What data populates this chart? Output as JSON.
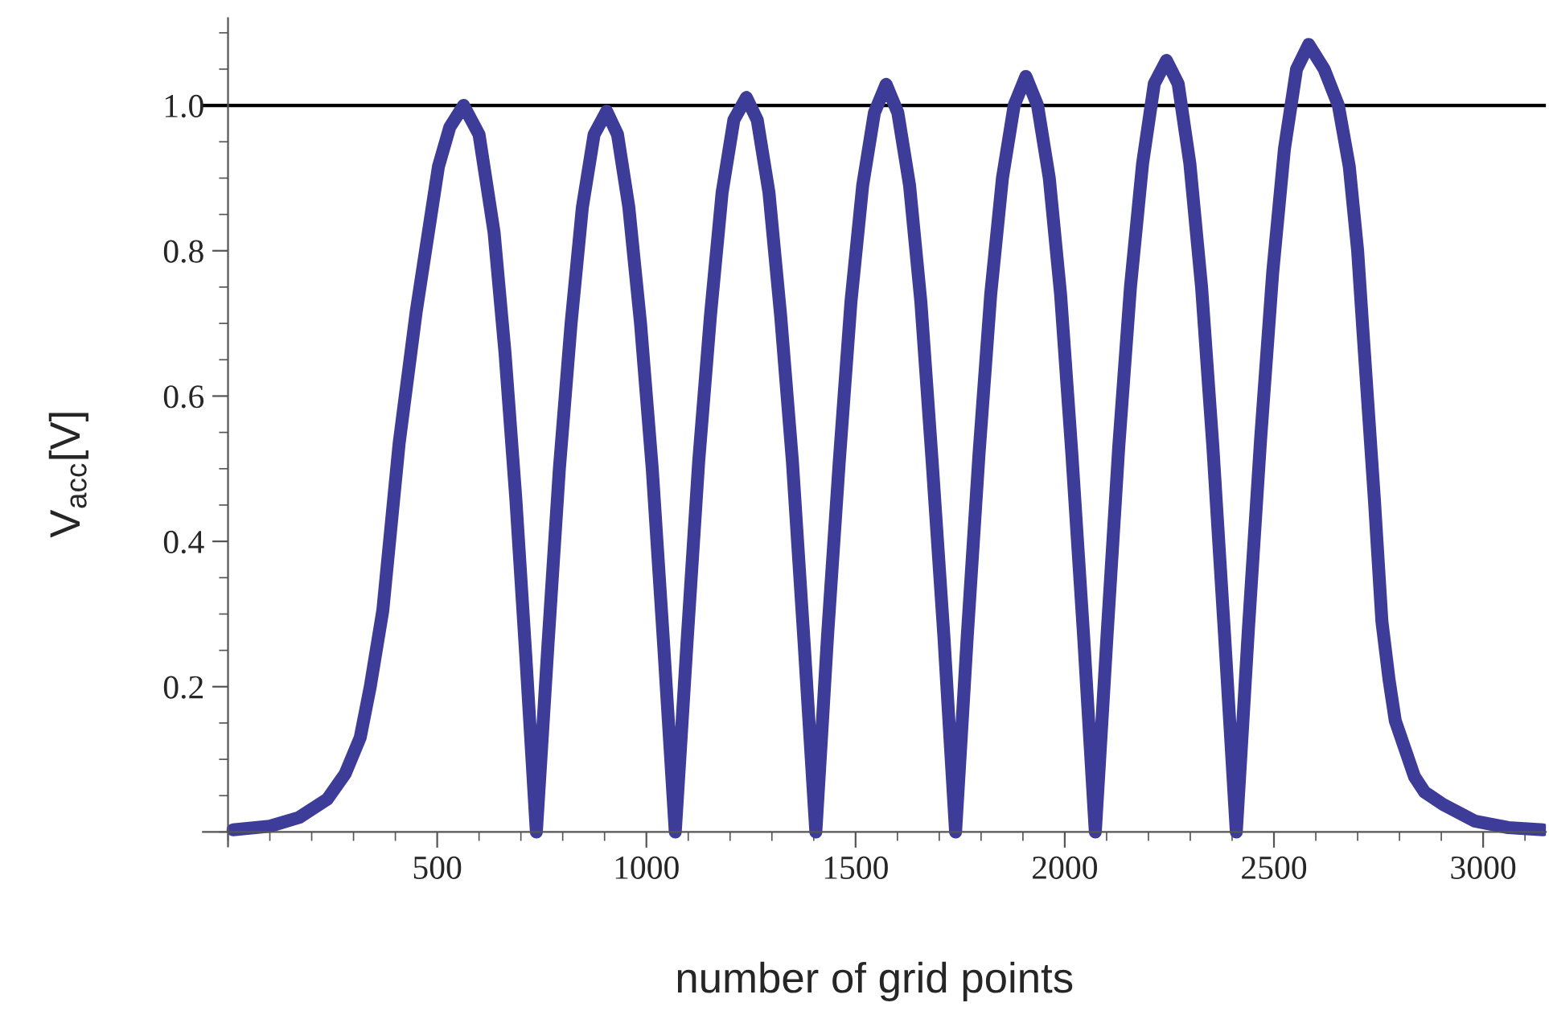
{
  "chart_data": {
    "type": "line",
    "xlabel": "number of grid points",
    "ylabel": "V$_{acc}$[V]",
    "series": [
      {
        "color": "#3d3d99",
        "x": [
          12,
          100,
          170,
          237,
          280,
          316,
          340,
          370,
          409,
          450,
          503,
          530,
          563,
          600,
          636,
          662,
          688,
          712,
          737,
          765,
          792,
          820,
          847,
          875,
          905,
          931,
          958,
          986,
          1014,
          1041,
          1069,
          1097,
          1125,
          1153,
          1181,
          1209,
          1239,
          1265,
          1293,
          1321,
          1349,
          1377,
          1405,
          1433,
          1461,
          1489,
          1517,
          1545,
          1573,
          1601,
          1629,
          1656,
          1683,
          1711,
          1739,
          1767,
          1795,
          1823,
          1851,
          1879,
          1907,
          1935,
          1963,
          1990,
          2017,
          2045,
          2073,
          2101,
          2129,
          2157,
          2186,
          2214,
          2243,
          2271,
          2299,
          2327,
          2354,
          2382,
          2410,
          2439,
          2468,
          2497,
          2525,
          2554,
          2583,
          2620,
          2654,
          2680,
          2700,
          2713,
          2740,
          2758,
          2775,
          2790,
          2836,
          2860,
          2904,
          2980,
          3060,
          3143
        ],
        "values": [
          0.003,
          0.008,
          0.02,
          0.045,
          0.08,
          0.13,
          0.2,
          0.305,
          0.535,
          0.717,
          0.916,
          0.97,
          1.0,
          0.96,
          0.825,
          0.66,
          0.458,
          0.24,
          0,
          0.26,
          0.5,
          0.7,
          0.86,
          0.96,
          0.992,
          0.96,
          0.86,
          0.7,
          0.5,
          0.26,
          0,
          0.26,
          0.51,
          0.71,
          0.88,
          0.98,
          1.011,
          0.98,
          0.88,
          0.71,
          0.51,
          0.26,
          0,
          0.27,
          0.51,
          0.73,
          0.89,
          0.99,
          1.029,
          0.99,
          0.89,
          0.73,
          0.51,
          0.27,
          0,
          0.27,
          0.52,
          0.74,
          0.9,
          1.0,
          1.04,
          1.0,
          0.9,
          0.74,
          0.52,
          0.27,
          0,
          0.27,
          0.53,
          0.75,
          0.92,
          1.03,
          1.062,
          1.03,
          0.92,
          0.75,
          0.53,
          0.27,
          0,
          0.28,
          0.54,
          0.77,
          0.94,
          1.05,
          1.084,
          1.05,
          1.0,
          0.916,
          0.8,
          0.687,
          0.458,
          0.29,
          0.21,
          0.153,
          0.076,
          0.055,
          0.038,
          0.015,
          0.006,
          0.003
        ]
      }
    ],
    "xlim": [
      -60,
      3150
    ],
    "ylim": [
      -0.02,
      1.12
    ],
    "xticks": [
      500,
      1000,
      1500,
      2000,
      2500,
      3000
    ],
    "yticks": [
      0.2,
      0.4,
      0.6,
      0.8,
      {
        "value": 1,
        "label": "1.0"
      }
    ],
    "ref_lines": [
      {
        "axis": "y",
        "value": 1.0,
        "color": "#000000"
      }
    ],
    "grid": false,
    "marker": "none",
    "line_style": "solid"
  }
}
